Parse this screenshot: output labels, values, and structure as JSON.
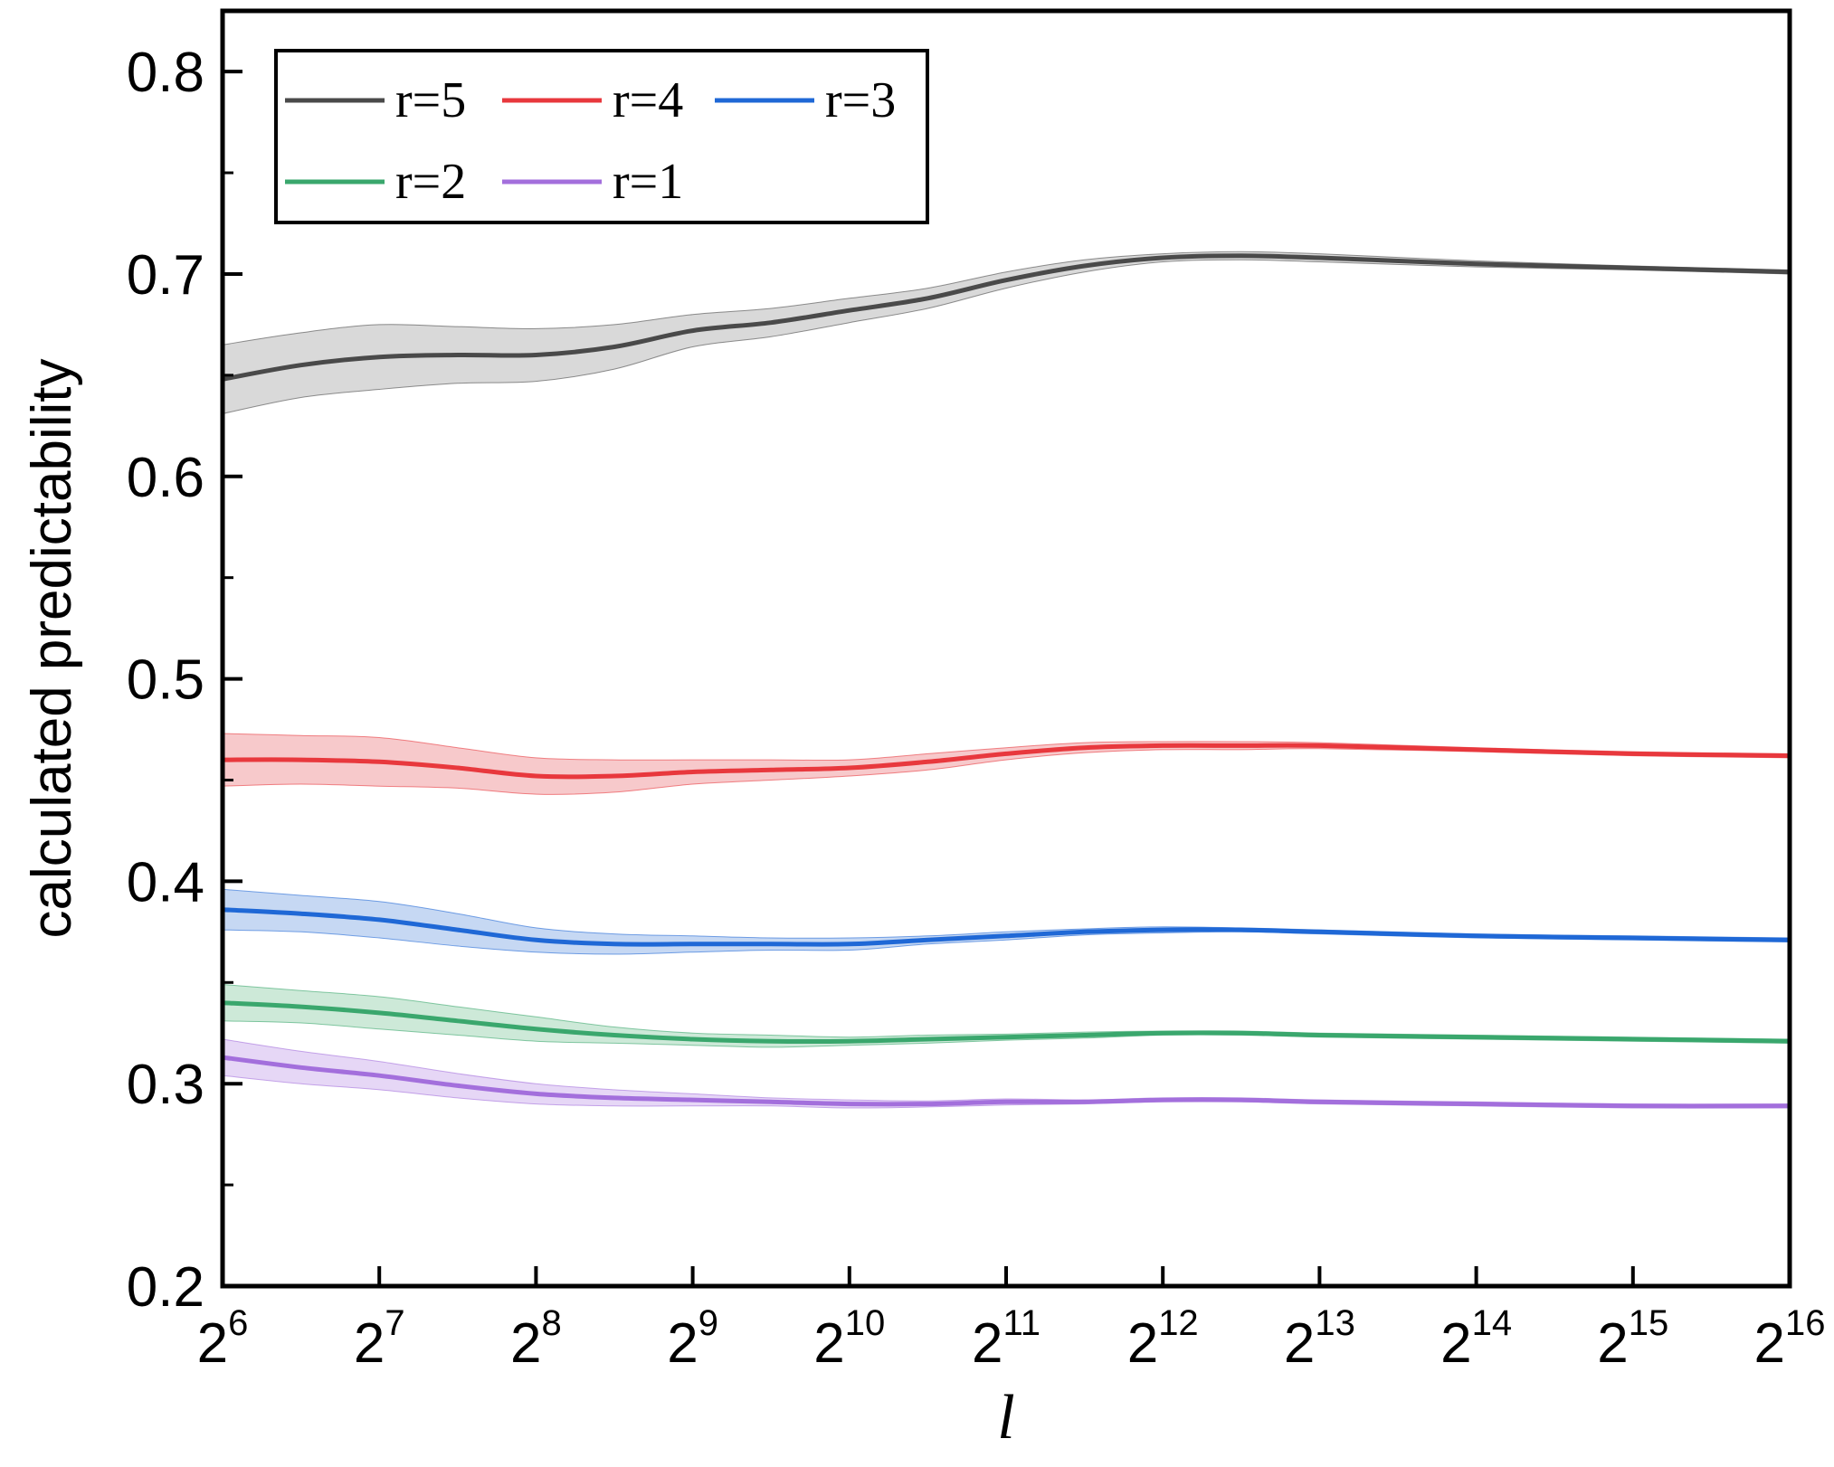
{
  "chart_data": {
    "type": "line",
    "xlabel": "l",
    "ylabel": "calculated predictability",
    "xscale": "log2",
    "ylim": [
      0.2,
      0.83
    ],
    "y_ticks": [
      "0.2",
      "0.3",
      "0.4",
      "0.5",
      "0.6",
      "0.7",
      "0.8"
    ],
    "x_ticks": [
      {
        "base": "2",
        "exp": "6"
      },
      {
        "base": "2",
        "exp": "7"
      },
      {
        "base": "2",
        "exp": "8"
      },
      {
        "base": "2",
        "exp": "9"
      },
      {
        "base": "2",
        "exp": "10"
      },
      {
        "base": "2",
        "exp": "11"
      },
      {
        "base": "2",
        "exp": "12"
      },
      {
        "base": "2",
        "exp": "13"
      },
      {
        "base": "2",
        "exp": "14"
      },
      {
        "base": "2",
        "exp": "15"
      },
      {
        "base": "2",
        "exp": "16"
      }
    ],
    "x_exponents": [
      6,
      6.5,
      7,
      7.5,
      8,
      8.5,
      9,
      9.5,
      10,
      10.5,
      11,
      11.5,
      12,
      12.5,
      13,
      14,
      15,
      16
    ],
    "series": [
      {
        "name": "r=5",
        "color": "#4a4a4a",
        "band_color": "#d9d9d9",
        "values": [
          0.648,
          0.655,
          0.659,
          0.66,
          0.66,
          0.664,
          0.672,
          0.676,
          0.682,
          0.688,
          0.697,
          0.704,
          0.708,
          0.709,
          0.708,
          0.705,
          0.703,
          0.701
        ],
        "band": [
          0.017,
          0.016,
          0.016,
          0.014,
          0.013,
          0.011,
          0.008,
          0.007,
          0.006,
          0.005,
          0.004,
          0.003,
          0.002,
          0.002,
          0.002,
          0.0015,
          0.001,
          0.001
        ]
      },
      {
        "name": "r=4",
        "color": "#e8383d",
        "band_color": "#f7c9cb",
        "values": [
          0.46,
          0.46,
          0.459,
          0.456,
          0.452,
          0.452,
          0.454,
          0.455,
          0.456,
          0.459,
          0.463,
          0.466,
          0.467,
          0.467,
          0.467,
          0.465,
          0.463,
          0.462
        ],
        "band": [
          0.013,
          0.012,
          0.012,
          0.01,
          0.009,
          0.008,
          0.006,
          0.005,
          0.004,
          0.004,
          0.003,
          0.0025,
          0.002,
          0.002,
          0.0015,
          0.001,
          0.001,
          0.001
        ]
      },
      {
        "name": "r=3",
        "color": "#1f68d6",
        "band_color": "#c6d8f3",
        "values": [
          0.386,
          0.384,
          0.381,
          0.376,
          0.371,
          0.369,
          0.369,
          0.369,
          0.369,
          0.371,
          0.373,
          0.375,
          0.376,
          0.376,
          0.375,
          0.373,
          0.372,
          0.371
        ],
        "band": [
          0.01,
          0.009,
          0.009,
          0.008,
          0.006,
          0.005,
          0.004,
          0.003,
          0.003,
          0.002,
          0.002,
          0.0015,
          0.0015,
          0.001,
          0.001,
          0.001,
          0.001,
          0.001
        ]
      },
      {
        "name": "r=2",
        "color": "#3aa76d",
        "band_color": "#cde9d8",
        "values": [
          0.34,
          0.338,
          0.335,
          0.331,
          0.327,
          0.324,
          0.322,
          0.321,
          0.321,
          0.322,
          0.323,
          0.324,
          0.325,
          0.325,
          0.324,
          0.323,
          0.322,
          0.321
        ],
        "band": [
          0.009,
          0.008,
          0.008,
          0.007,
          0.006,
          0.004,
          0.003,
          0.003,
          0.002,
          0.002,
          0.0015,
          0.0015,
          0.001,
          0.001,
          0.001,
          0.001,
          0.001,
          0.001
        ]
      },
      {
        "name": "r=1",
        "color": "#a36fdc",
        "band_color": "#e6d7f6",
        "values": [
          0.313,
          0.308,
          0.304,
          0.299,
          0.295,
          0.293,
          0.292,
          0.291,
          0.29,
          0.29,
          0.291,
          0.291,
          0.292,
          0.292,
          0.291,
          0.29,
          0.289,
          0.289
        ],
        "band": [
          0.009,
          0.008,
          0.007,
          0.006,
          0.005,
          0.004,
          0.003,
          0.002,
          0.002,
          0.0015,
          0.0015,
          0.001,
          0.001,
          0.001,
          0.001,
          0.001,
          0.001,
          0.001
        ]
      }
    ],
    "legend": {
      "position": "top-left",
      "columns": 3
    },
    "grid": false
  }
}
